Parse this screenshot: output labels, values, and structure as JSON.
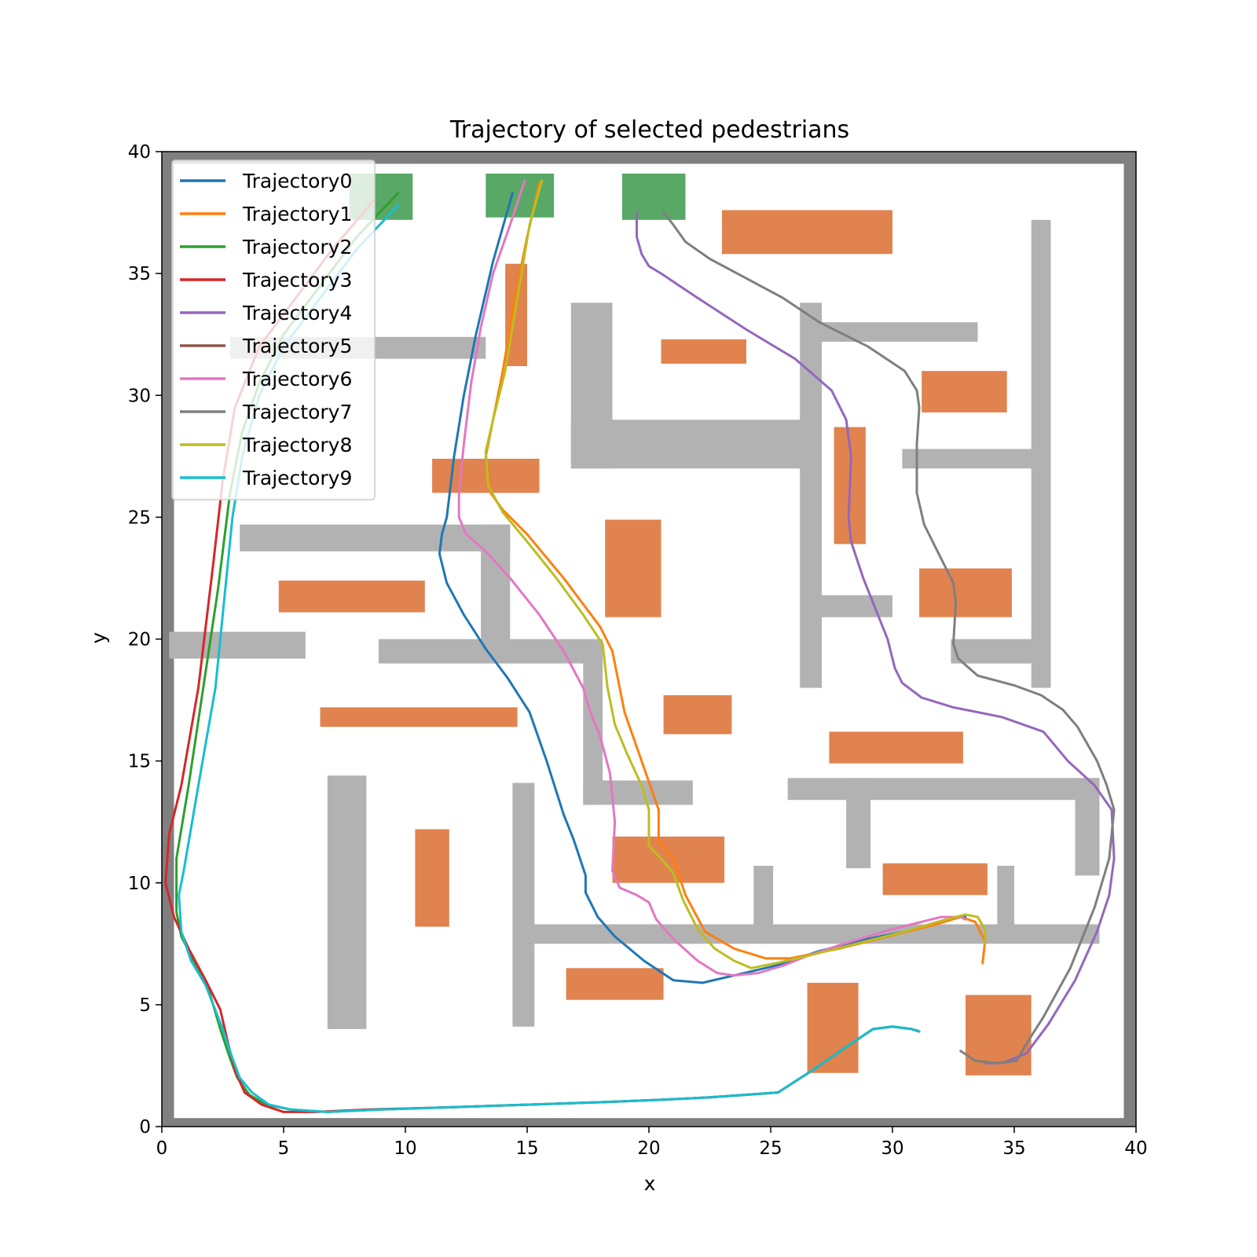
{
  "chart_data": {
    "type": "line",
    "title": "Trajectory of selected pedestrians",
    "xlabel": "x",
    "ylabel": "y",
    "xlim": [
      0,
      40
    ],
    "ylim": [
      0,
      40
    ],
    "xticks": [
      0,
      5,
      10,
      15,
      20,
      25,
      30,
      35,
      40
    ],
    "yticks": [
      0,
      5,
      10,
      15,
      20,
      25,
      30,
      35,
      40
    ],
    "grid": false,
    "legend_position": "top-left",
    "background_map": {
      "border_color": "#808080",
      "wall_color": "#b2b2b2",
      "obstacle_color": "#e0834f",
      "goal_color": "#59a866",
      "walls": [
        [
          0.3,
          19.2,
          5.9,
          20.3
        ],
        [
          3.2,
          23.6,
          14.3,
          24.7
        ],
        [
          2.8,
          31.5,
          13.3,
          32.4
        ],
        [
          13.1,
          19.9,
          14.3,
          24.7
        ],
        [
          8.9,
          19.0,
          18.0,
          20.0
        ],
        [
          17.3,
          13.2,
          18.1,
          20.0
        ],
        [
          17.3,
          13.2,
          21.8,
          14.2
        ],
        [
          6.8,
          4.0,
          8.4,
          14.4
        ],
        [
          14.4,
          4.1,
          15.3,
          14.1
        ],
        [
          14.8,
          7.5,
          38.5,
          8.3
        ],
        [
          24.3,
          8.3,
          25.1,
          10.7
        ],
        [
          34.3,
          8.3,
          35.0,
          10.7
        ],
        [
          16.8,
          27.0,
          18.5,
          33.8
        ],
        [
          16.8,
          27.0,
          26.5,
          29.0
        ],
        [
          26.2,
          18.0,
          27.1,
          33.8
        ],
        [
          26.6,
          32.2,
          33.5,
          33.0
        ],
        [
          27.0,
          20.9,
          30.0,
          21.8
        ],
        [
          30.4,
          27.0,
          36.1,
          27.8
        ],
        [
          35.7,
          18.0,
          36.5,
          37.2
        ],
        [
          32.4,
          19.0,
          35.9,
          20.0
        ],
        [
          25.7,
          13.4,
          38.5,
          14.3
        ],
        [
          28.1,
          10.6,
          29.1,
          14.3
        ],
        [
          37.5,
          10.3,
          38.5,
          14.3
        ]
      ],
      "obstacles": [
        [
          23.0,
          35.8,
          30.0,
          37.6
        ],
        [
          20.5,
          31.3,
          24.0,
          32.3
        ],
        [
          31.2,
          29.3,
          34.7,
          31.0
        ],
        [
          14.1,
          31.2,
          15.0,
          35.4
        ],
        [
          11.1,
          26.0,
          15.5,
          27.4
        ],
        [
          18.2,
          20.9,
          20.5,
          24.9
        ],
        [
          4.8,
          21.1,
          10.8,
          22.4
        ],
        [
          27.6,
          23.9,
          28.9,
          28.7
        ],
        [
          31.1,
          20.9,
          34.9,
          22.9
        ],
        [
          6.5,
          16.4,
          14.6,
          17.2
        ],
        [
          20.6,
          16.1,
          23.4,
          17.7
        ],
        [
          27.4,
          14.9,
          32.9,
          16.2
        ],
        [
          10.4,
          8.2,
          11.8,
          12.2
        ],
        [
          18.5,
          10.0,
          23.1,
          11.9
        ],
        [
          29.6,
          9.5,
          33.9,
          10.8
        ],
        [
          16.6,
          5.2,
          20.6,
          6.5
        ],
        [
          26.5,
          2.2,
          28.6,
          5.9
        ],
        [
          33.0,
          2.1,
          35.7,
          5.4
        ]
      ],
      "goals": [
        [
          7.7,
          37.2,
          10.3,
          39.1
        ],
        [
          13.3,
          37.3,
          16.1,
          39.1
        ],
        [
          18.9,
          37.2,
          21.5,
          39.1
        ]
      ]
    },
    "series": [
      {
        "name": "Trajectory0",
        "color": "#1f77b4",
        "x": [
          14.4,
          13.6,
          12.9,
          12.4,
          12.0,
          11.7,
          11.5,
          11.4,
          11.7,
          12.4,
          13.3,
          14.2,
          15.1,
          15.8,
          16.5,
          16.9,
          17.4,
          17.4,
          17.9,
          18.6,
          19.8,
          21.0,
          22.2,
          23.5,
          25.2,
          27.0,
          29.0,
          31.0,
          32.7,
          33.0
        ],
        "y": [
          38.3,
          35.5,
          32.5,
          30.0,
          27.5,
          25.0,
          24.3,
          23.5,
          22.3,
          21.0,
          19.6,
          18.4,
          17.0,
          15.0,
          12.8,
          11.8,
          10.3,
          9.6,
          8.6,
          7.8,
          6.8,
          6.0,
          5.9,
          6.2,
          6.6,
          7.2,
          7.7,
          8.1,
          8.6,
          8.6
        ]
      },
      {
        "name": "Trajectory1",
        "color": "#ff7f0e",
        "x": [
          15.5,
          15.0,
          14.5,
          14.0,
          13.5,
          13.3,
          13.5,
          14.0,
          15.0,
          16.5,
          18.0,
          18.5,
          19.0,
          19.7,
          20.4,
          20.4,
          21.0,
          21.5,
          22.3,
          23.5,
          24.8,
          25.8,
          26.3,
          27.8,
          29.8,
          31.8,
          32.8,
          33.4,
          33.8,
          33.7
        ],
        "y": [
          38.7,
          36.5,
          34.0,
          31.0,
          28.5,
          27.5,
          26.0,
          25.3,
          24.3,
          22.5,
          20.5,
          19.5,
          17.0,
          15.0,
          13.0,
          11.7,
          11.0,
          9.5,
          8.0,
          7.3,
          6.9,
          6.9,
          7.0,
          7.3,
          7.8,
          8.3,
          8.6,
          8.4,
          7.6,
          6.7
        ]
      },
      {
        "name": "Trajectory2",
        "color": "#2ca02c",
        "x": [
          9.7,
          8.0,
          6.5,
          5.0,
          4.0,
          3.3,
          2.8,
          2.3,
          1.7,
          1.1,
          0.6,
          0.6,
          0.8,
          1.3,
          1.9,
          2.4,
          2.8,
          3.1,
          3.6,
          4.3,
          5.3,
          6.8,
          9.0,
          12.0,
          15.0,
          18.0,
          20.5,
          22.5,
          25.3,
          26.7,
          28.3,
          29.2,
          30.0,
          30.8,
          31.1
        ],
        "y": [
          38.3,
          36.5,
          34.5,
          32.5,
          30.5,
          28.5,
          26.0,
          22.0,
          18.0,
          14.0,
          11.0,
          8.8,
          7.8,
          6.8,
          5.7,
          4.0,
          2.8,
          2.0,
          1.3,
          0.9,
          0.7,
          0.6,
          0.7,
          0.8,
          0.9,
          1.0,
          1.1,
          1.2,
          1.4,
          2.3,
          3.4,
          4.0,
          4.1,
          4.0,
          3.9
        ]
      },
      {
        "name": "Trajectory3",
        "color": "#d62728",
        "x": [
          8.7,
          7.0,
          5.5,
          4.0,
          3.0,
          2.5,
          2.1,
          1.5,
          0.8,
          0.3,
          0.15,
          0.5,
          1.1,
          1.8,
          2.4,
          2.7,
          3.0,
          3.4,
          4.1,
          5.0,
          6.3,
          8.5,
          12.0,
          15.0,
          18.0,
          20.5,
          22.5,
          25.3,
          26.7,
          28.3,
          29.2,
          30.0,
          30.8,
          31.1
        ],
        "y": [
          38.0,
          36.0,
          34.0,
          32.0,
          29.5,
          26.5,
          23.0,
          18.0,
          14.0,
          12.0,
          10.0,
          8.6,
          7.3,
          6.0,
          4.8,
          3.5,
          2.3,
          1.4,
          0.9,
          0.6,
          0.6,
          0.7,
          0.8,
          0.9,
          1.0,
          1.1,
          1.2,
          1.4,
          2.3,
          3.4,
          4.0,
          4.1,
          4.0,
          3.9
        ]
      },
      {
        "name": "Trajectory4",
        "color": "#9467bd",
        "x": [
          19.5,
          19.5,
          19.7,
          20.0,
          20.5,
          22.0,
          24.0,
          26.0,
          27.5,
          28.1,
          28.3,
          28.2,
          28.3,
          28.8,
          29.4,
          29.8,
          30.1,
          30.4,
          31.2,
          32.5,
          34.5,
          36.2,
          37.2,
          38.3,
          39.0,
          39.1,
          38.9,
          38.4,
          37.5,
          36.4,
          35.5,
          34.5,
          33.8
        ],
        "y": [
          37.5,
          36.5,
          35.8,
          35.3,
          35.0,
          34.0,
          32.7,
          31.5,
          30.2,
          29.0,
          27.5,
          25.0,
          24.0,
          22.5,
          21.0,
          20.0,
          18.8,
          18.2,
          17.6,
          17.2,
          16.8,
          16.2,
          15.0,
          14.0,
          13.0,
          11.0,
          9.5,
          8.0,
          6.0,
          4.2,
          3.0,
          2.6,
          2.6
        ]
      },
      {
        "name": "Trajectory5",
        "color": "#8c564b",
        "x": [
          31.0,
          31.1
        ],
        "y": [
          3.95,
          3.9
        ]
      },
      {
        "name": "Trajectory6",
        "color": "#e377c2",
        "x": [
          14.9,
          14.3,
          13.6,
          13.1,
          12.7,
          12.4,
          12.2,
          12.2,
          12.5,
          13.3,
          14.3,
          15.5,
          16.5,
          17.3,
          17.6,
          18.0,
          18.4,
          18.6,
          18.5,
          18.8,
          19.5,
          20.0,
          20.3,
          21.0,
          22.0,
          22.8,
          23.5,
          24.5,
          25.5,
          26.5,
          28.0,
          30.0,
          32.0,
          32.8,
          33.0
        ],
        "y": [
          38.8,
          37.0,
          35.0,
          32.8,
          30.5,
          28.0,
          26.0,
          25.0,
          24.3,
          23.6,
          22.5,
          21.0,
          19.5,
          18.0,
          17.0,
          16.0,
          14.5,
          12.5,
          10.5,
          9.8,
          9.5,
          9.2,
          8.5,
          7.7,
          6.8,
          6.3,
          6.2,
          6.3,
          6.6,
          7.0,
          7.5,
          8.1,
          8.6,
          8.6,
          8.5
        ]
      },
      {
        "name": "Trajectory7",
        "color": "#7f7f7f",
        "x": [
          20.6,
          21.0,
          21.5,
          22.5,
          24.0,
          25.5,
          27.0,
          29.0,
          30.5,
          31.0,
          31.1,
          31.0,
          31.0,
          31.3,
          31.9,
          32.5,
          32.6,
          32.5,
          32.7,
          33.5,
          35.0,
          36.1,
          37.0,
          37.6,
          38.4,
          38.8,
          39.1,
          38.9,
          38.3,
          37.3,
          36.2,
          35.5,
          35.1,
          34.3,
          33.4,
          32.8
        ],
        "y": [
          37.5,
          37.0,
          36.3,
          35.6,
          34.8,
          34.0,
          33.0,
          32.0,
          31.0,
          30.2,
          29.5,
          28.0,
          26.0,
          24.7,
          23.5,
          22.3,
          21.5,
          19.8,
          19.2,
          18.5,
          18.1,
          17.7,
          17.1,
          16.4,
          15.0,
          14.0,
          13.0,
          11.0,
          9.0,
          6.5,
          4.5,
          3.4,
          2.7,
          2.6,
          2.7,
          3.1
        ]
      },
      {
        "name": "Trajectory8",
        "color": "#bcbd22",
        "x": [
          15.6,
          15.1,
          14.6,
          14.1,
          13.6,
          13.3,
          13.4,
          14.0,
          15.0,
          16.2,
          17.3,
          18.1,
          18.3,
          18.6,
          19.1,
          19.7,
          20.0,
          20.0,
          20.5,
          21.0,
          21.4,
          22.0,
          22.7,
          23.5,
          24.2,
          25.2,
          26.5,
          28.5,
          30.5,
          32.2,
          33.0,
          33.5,
          33.8,
          33.8
        ],
        "y": [
          38.8,
          37.0,
          34.0,
          31.0,
          29.0,
          27.7,
          26.3,
          25.2,
          24.0,
          22.5,
          21.0,
          19.8,
          18.0,
          16.5,
          15.3,
          14.0,
          13.0,
          11.5,
          11.0,
          10.4,
          9.3,
          8.1,
          7.3,
          6.8,
          6.5,
          6.7,
          7.0,
          7.5,
          8.0,
          8.5,
          8.7,
          8.6,
          8.1,
          7.5
        ]
      },
      {
        "name": "Trajectory9",
        "color": "#17becf",
        "x": [
          9.7,
          8.0,
          6.5,
          5.0,
          4.0,
          3.3,
          2.9,
          2.6,
          2.2,
          1.5,
          0.9,
          0.7,
          0.8,
          1.2,
          1.8,
          2.5,
          2.9,
          3.2,
          3.7,
          4.4,
          5.3,
          6.8,
          9.0,
          12.0,
          15.0,
          18.0,
          20.5,
          22.5,
          25.3,
          26.7,
          28.3,
          29.2,
          30.0,
          30.8,
          31.1
        ],
        "y": [
          37.8,
          36.0,
          34.0,
          32.0,
          30.0,
          27.5,
          25.0,
          22.0,
          18.0,
          14.0,
          10.5,
          9.5,
          8.0,
          6.8,
          5.8,
          4.0,
          2.8,
          2.0,
          1.4,
          0.9,
          0.7,
          0.6,
          0.7,
          0.8,
          0.9,
          1.0,
          1.1,
          1.2,
          1.4,
          2.3,
          3.4,
          4.0,
          4.1,
          4.0,
          3.9
        ]
      }
    ]
  }
}
